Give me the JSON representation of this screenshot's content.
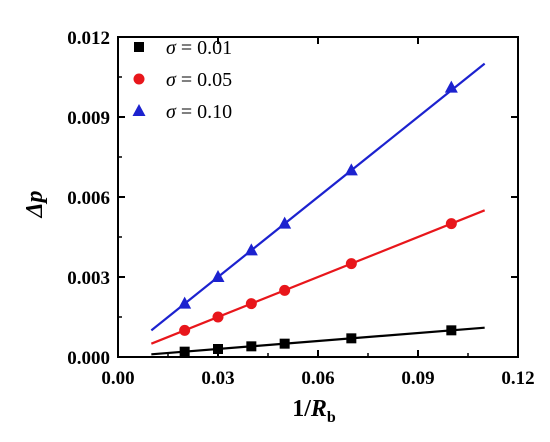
{
  "chart_data": {
    "type": "scatter",
    "xlabel": {
      "main": "1/",
      "italic": "R",
      "sub": "b"
    },
    "ylabel": "Δp",
    "xlim": [
      0.0,
      0.12
    ],
    "ylim": [
      0.0,
      0.012
    ],
    "x_ticks": [
      0.0,
      0.03,
      0.06,
      0.09,
      0.12
    ],
    "x_tick_labels": [
      "0.00",
      "0.03",
      "0.06",
      "0.09",
      "0.12"
    ],
    "y_ticks": [
      0.0,
      0.003,
      0.006,
      0.009,
      0.012
    ],
    "y_tick_labels": [
      "0.000",
      "0.003",
      "0.006",
      "0.009",
      "0.012"
    ],
    "grid": false,
    "legend_position": "top-left",
    "series": [
      {
        "name": "σ = 0.01",
        "symbol": "σ",
        "value_text": " = 0.01",
        "marker": "square",
        "color": "#000000",
        "x": [
          0.02,
          0.03,
          0.04,
          0.05,
          0.07,
          0.1
        ],
        "y": [
          0.0002,
          0.0003,
          0.0004,
          0.0005,
          0.0007,
          0.001
        ],
        "fit": {
          "x": [
            0.01,
            0.11
          ],
          "y": [
            0.0001,
            0.0011
          ]
        }
      },
      {
        "name": "σ = 0.05",
        "symbol": "σ",
        "value_text": " = 0.05",
        "marker": "circle",
        "color": "#e8161b",
        "x": [
          0.02,
          0.03,
          0.04,
          0.05,
          0.07,
          0.1
        ],
        "y": [
          0.001,
          0.0015,
          0.002,
          0.0025,
          0.0035,
          0.005
        ],
        "fit": {
          "x": [
            0.01,
            0.11
          ],
          "y": [
            0.0005,
            0.0055
          ]
        }
      },
      {
        "name": "σ = 0.10",
        "symbol": "σ",
        "value_text": " = 0.10",
        "marker": "triangle",
        "color": "#1c22cf",
        "x": [
          0.02,
          0.03,
          0.04,
          0.05,
          0.07,
          0.1
        ],
        "y": [
          0.002,
          0.003,
          0.004,
          0.005,
          0.007,
          0.0101
        ],
        "fit": {
          "x": [
            0.01,
            0.11
          ],
          "y": [
            0.001,
            0.011
          ]
        }
      }
    ]
  }
}
